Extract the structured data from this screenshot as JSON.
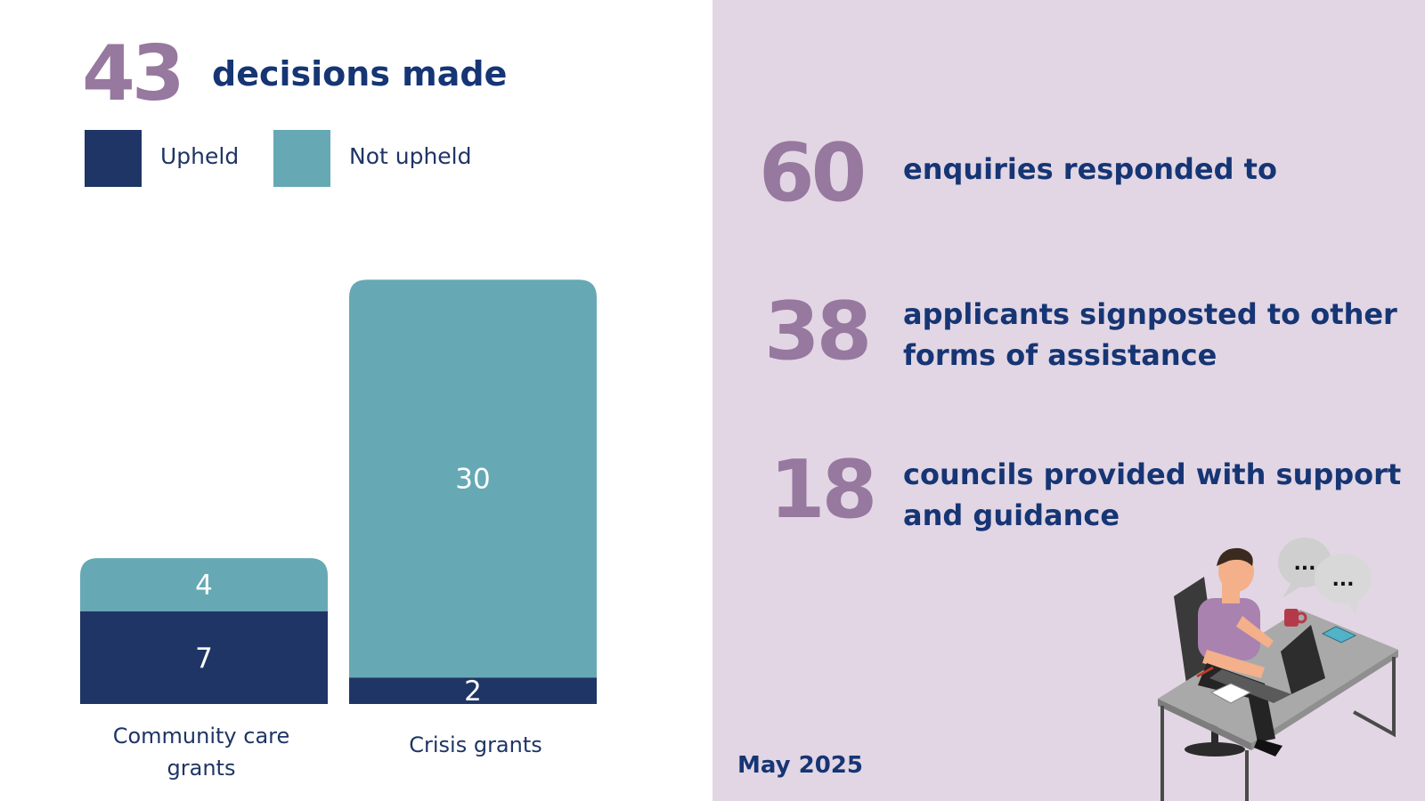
{
  "headline": {
    "number": "43",
    "text": "decisions made"
  },
  "legend": [
    {
      "label": "Upheld",
      "color": "#1f3565"
    },
    {
      "label": "Not upheld",
      "color": "#66a9b5"
    }
  ],
  "chart_data": {
    "type": "bar",
    "stacked": true,
    "categories": [
      "Community care grants",
      "Crisis grants"
    ],
    "category_lines": [
      [
        "Community care",
        "grants"
      ],
      [
        "Crisis grants"
      ]
    ],
    "series": [
      {
        "name": "Upheld",
        "values": [
          7,
          2
        ],
        "color": "#1f3565"
      },
      {
        "name": "Not upheld",
        "values": [
          4,
          30
        ],
        "color": "#66a9b5"
      }
    ],
    "title": "decisions made",
    "xlabel": "",
    "ylabel": "",
    "grid": false,
    "legend_position": "top-left"
  },
  "stats": [
    {
      "number": "60",
      "text_lines": [
        "enquiries responded to"
      ]
    },
    {
      "number": "38",
      "text_lines": [
        "applicants signposted to other",
        "forms of assistance"
      ]
    },
    {
      "number": "18",
      "text_lines": [
        "councils provided with support",
        "and guidance"
      ]
    }
  ],
  "footer": {
    "date": "May 2025"
  },
  "colors": {
    "accent_purple": "#97789f",
    "text_navy": "#163574",
    "panel_lilac": "#e2d6e4"
  }
}
